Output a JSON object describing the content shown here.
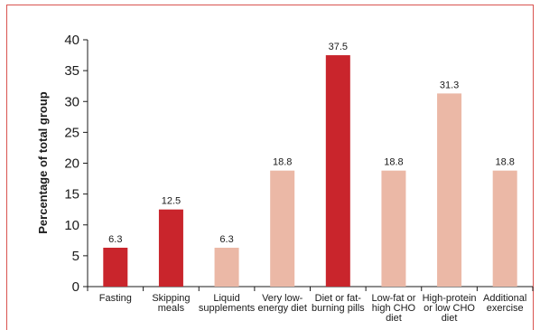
{
  "chart_data": {
    "type": "bar",
    "title": "",
    "xlabel": "",
    "ylabel": "Percentage of total group",
    "ylim": [
      0,
      40
    ],
    "yticks": [
      0,
      5,
      10,
      15,
      20,
      25,
      30,
      35,
      40
    ],
    "grid": false,
    "legend": "none",
    "categories": [
      [
        "Fasting"
      ],
      [
        "Skipping",
        "meals"
      ],
      [
        "Liquid",
        "supplements"
      ],
      [
        "Very low-",
        "energy diet"
      ],
      [
        "Diet or fat-",
        "burning pills"
      ],
      [
        "Low-fat or",
        "high CHO",
        "diet"
      ],
      [
        "High-protein",
        "or low CHO",
        "diet"
      ],
      [
        "Additional",
        "exercise"
      ]
    ],
    "values": [
      6.3,
      12.5,
      6.3,
      18.8,
      37.5,
      18.8,
      31.3,
      18.8
    ],
    "value_labels": [
      "6.3",
      "12.5",
      "6.3",
      "18.8",
      "37.5",
      "18.8",
      "31.3",
      "18.8"
    ],
    "bar_colors": [
      "#c9252c",
      "#c9252c",
      "#ebb8a6",
      "#ebb8a6",
      "#c9252c",
      "#ebb8a6",
      "#ebb8a6",
      "#ebb8a6"
    ]
  },
  "colors": {
    "frame": "#d9534f",
    "axis": "#1a1a1a"
  }
}
